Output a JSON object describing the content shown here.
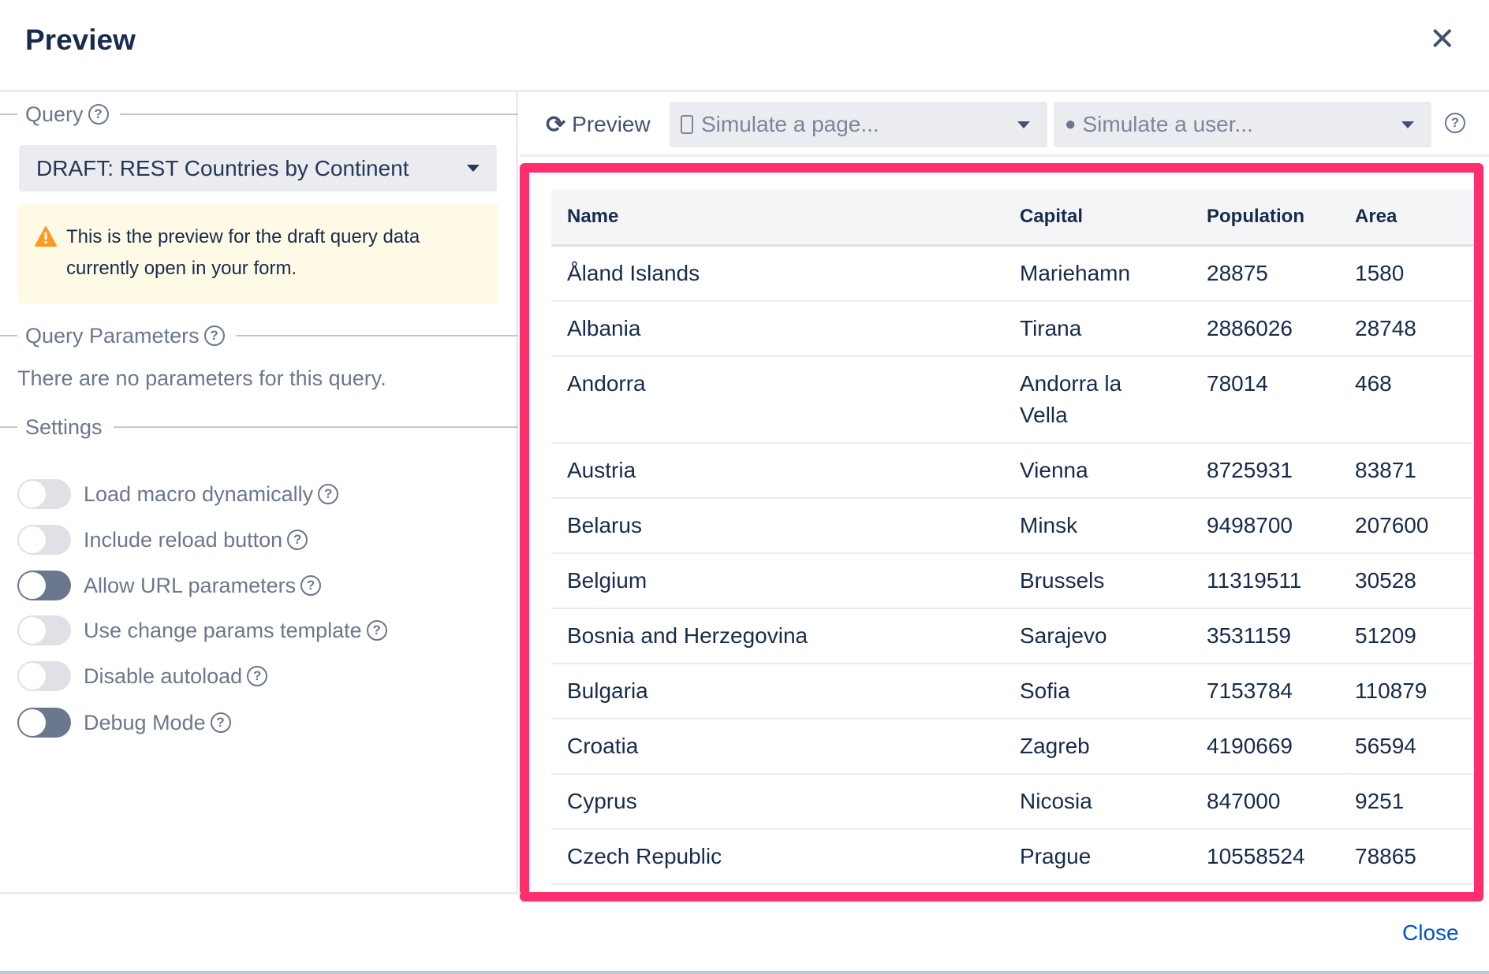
{
  "dialog": {
    "title": "Preview",
    "close_label": "Close"
  },
  "left": {
    "query_legend": "Query",
    "query_select": "DRAFT: REST Countries by Continent",
    "alert": "This is the preview for the draft query data currently open in your form.",
    "params_legend": "Query Parameters",
    "no_params": "There are no parameters for this query.",
    "settings_legend": "Settings",
    "settings": [
      {
        "label": "Load macro dynamically",
        "on": false
      },
      {
        "label": "Include reload button",
        "on": false
      },
      {
        "label": "Allow URL parameters",
        "on": true
      },
      {
        "label": "Use change params template",
        "on": false
      },
      {
        "label": "Disable autoload",
        "on": false
      },
      {
        "label": "Debug Mode",
        "on": true
      }
    ]
  },
  "toolbar": {
    "preview_label": "Preview",
    "page_placeholder": "Simulate a page...",
    "user_placeholder": "Simulate a user..."
  },
  "table": {
    "columns": [
      "Name",
      "Capital",
      "Population",
      "Area"
    ],
    "rows": [
      [
        "Åland Islands",
        "Mariehamn",
        "28875",
        "1580"
      ],
      [
        "Albania",
        "Tirana",
        "2886026",
        "28748"
      ],
      [
        "Andorra",
        "Andorra la Vella",
        "78014",
        "468"
      ],
      [
        "Austria",
        "Vienna",
        "8725931",
        "83871"
      ],
      [
        "Belarus",
        "Minsk",
        "9498700",
        "207600"
      ],
      [
        "Belgium",
        "Brussels",
        "11319511",
        "30528"
      ],
      [
        "Bosnia and Herzegovina",
        "Sarajevo",
        "3531159",
        "51209"
      ],
      [
        "Bulgaria",
        "Sofia",
        "7153784",
        "110879"
      ],
      [
        "Croatia",
        "Zagreb",
        "4190669",
        "56594"
      ],
      [
        "Cyprus",
        "Nicosia",
        "847000",
        "9251"
      ],
      [
        "Czech Republic",
        "Prague",
        "10558524",
        "78865"
      ]
    ]
  },
  "colors": {
    "highlight": "#ff2f6e",
    "link": "#0052cc",
    "alert_bg": "#fffae6",
    "warning": "#ff991f"
  }
}
